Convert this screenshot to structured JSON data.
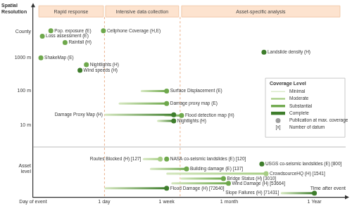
{
  "chart_data": {
    "type": "scatter",
    "x_label": "Time after event",
    "y_label": "Spatial Resolution",
    "xlim": [
      0,
      4.4
    ],
    "xticks": [
      {
        "value": 0,
        "label": "Day of event"
      },
      {
        "value": 1,
        "label": "1 day"
      },
      {
        "value": 1.88,
        "label": "1 week"
      },
      {
        "value": 2.76,
        "label": "1 month"
      },
      {
        "value": 3.96,
        "label": "1 Year"
      }
    ],
    "ylim": [
      -0.82,
      4.72
    ],
    "yticks": [
      {
        "value": 0,
        "label": "Asset level"
      },
      {
        "value": 1.26,
        "label": "10 m"
      },
      {
        "value": 2.26,
        "label": "100 m"
      },
      {
        "value": 3.2,
        "label": "1000 m"
      },
      {
        "value": 3.96,
        "label": "County"
      }
    ],
    "grid": false,
    "legend": "right",
    "legend_title": "Coverage Level",
    "series": [
      {
        "name": "Minimal",
        "color": "#d3e6bd"
      },
      {
        "name": "Moderate",
        "color": "#a6cd84"
      },
      {
        "name": "Substantial",
        "color": "#6ea84c"
      },
      {
        "name": "Complete",
        "color": "#3e7d2c"
      }
    ],
    "legend_notes": [
      {
        "marker": "circle",
        "color": "#9e9e9e",
        "label": "Publication at max. coverage"
      },
      {
        "symbol": "[x]",
        "label": "Number of datum"
      }
    ],
    "phases": [
      {
        "label": "Rapid response",
        "start": 0.08,
        "end": 0.99
      },
      {
        "label": "Intensive data collection",
        "start": 1.02,
        "end": 2.05
      },
      {
        "label": "Asset-specific analysis",
        "start": 2.09,
        "end": 4.32
      }
    ],
    "points": [
      {
        "name": "Pop. exposure (E)",
        "x": 0.25,
        "y": 3.98,
        "coverage": "Substantial"
      },
      {
        "name": "Cellphone Coverage (H,E)",
        "x": 0.99,
        "y": 3.98,
        "coverage": "Substantial"
      },
      {
        "name": "Loss assessment (E)",
        "x": 0.13,
        "y": 3.82,
        "coverage": "Substantial"
      },
      {
        "name": "Rainfall (H)",
        "x": 0.45,
        "y": 3.64,
        "coverage": "Substantial"
      },
      {
        "name": "Landslide density (H)",
        "x": 3.25,
        "y": 3.36,
        "coverage": "Complete"
      },
      {
        "name": "ShakeMap (E)",
        "x": 0.11,
        "y": 3.2,
        "coverage": "Substantial"
      },
      {
        "name": "Nightlights (H)",
        "x": 0.75,
        "y": 3.0,
        "coverage": "Substantial"
      },
      {
        "name": "Wind speeds (H)",
        "x": 0.66,
        "y": 2.84,
        "coverage": "Complete"
      },
      {
        "name": "Surface Displacement (E)",
        "x": 1.88,
        "y": 2.24,
        "start": 1.53,
        "coverage": "Substantial"
      },
      {
        "name": "Damage proxy map (E)",
        "x": 1.88,
        "y": 1.88,
        "start": 1.22,
        "coverage": "Substantial"
      },
      {
        "name": "Damage Proxy Map (H)",
        "x": 1.98,
        "y": 1.56,
        "start": 1.02,
        "coverage": "Complete"
      },
      {
        "name": "Flood detection map (H)",
        "x": 2.09,
        "y": 1.54,
        "start": 1.86,
        "coverage": "Substantial"
      },
      {
        "name": "Nightlights (H)",
        "x": 1.98,
        "y": 1.38,
        "start": 1.76,
        "coverage": "Complete"
      },
      {
        "name": "Routes Blocked (H) [127]",
        "x": 1.79,
        "y": 0.28,
        "start": 1.56,
        "coverage": "Moderate"
      },
      {
        "name": "NASA co-seismic landslides (E) [120]",
        "x": 1.88,
        "y": 0.28,
        "coverage": "Substantial"
      },
      {
        "name": "USGS co-seismic landslides (E) [800]",
        "x": 3.22,
        "y": 0.14,
        "coverage": "Complete"
      },
      {
        "name": "Building damage (E) [137]",
        "x": 2.16,
        "y": 0,
        "start": 1.66,
        "coverage": "Substantial"
      },
      {
        "name": "CrowdsourceHQ (H) [1541]",
        "x": 3.28,
        "y": -0.14,
        "start": 1.89,
        "coverage": "Moderate"
      },
      {
        "name": "Bridge Status (H) [3010]",
        "x": 2.68,
        "y": -0.28,
        "start": 2.09,
        "coverage": "Substantial"
      },
      {
        "name": "Wind Damage (H) [53664]",
        "x": 2.75,
        "y": -0.42,
        "start": 1.96,
        "coverage": "Substantial"
      },
      {
        "name": "Flood Damage (H) [72640]",
        "x": 1.88,
        "y": -0.56,
        "start": 1.02,
        "coverage": "Complete"
      },
      {
        "name": "Slope Failures (H) [71431]",
        "x": 3.96,
        "y": -0.7,
        "start": 3.5,
        "coverage": "Complete"
      }
    ]
  }
}
